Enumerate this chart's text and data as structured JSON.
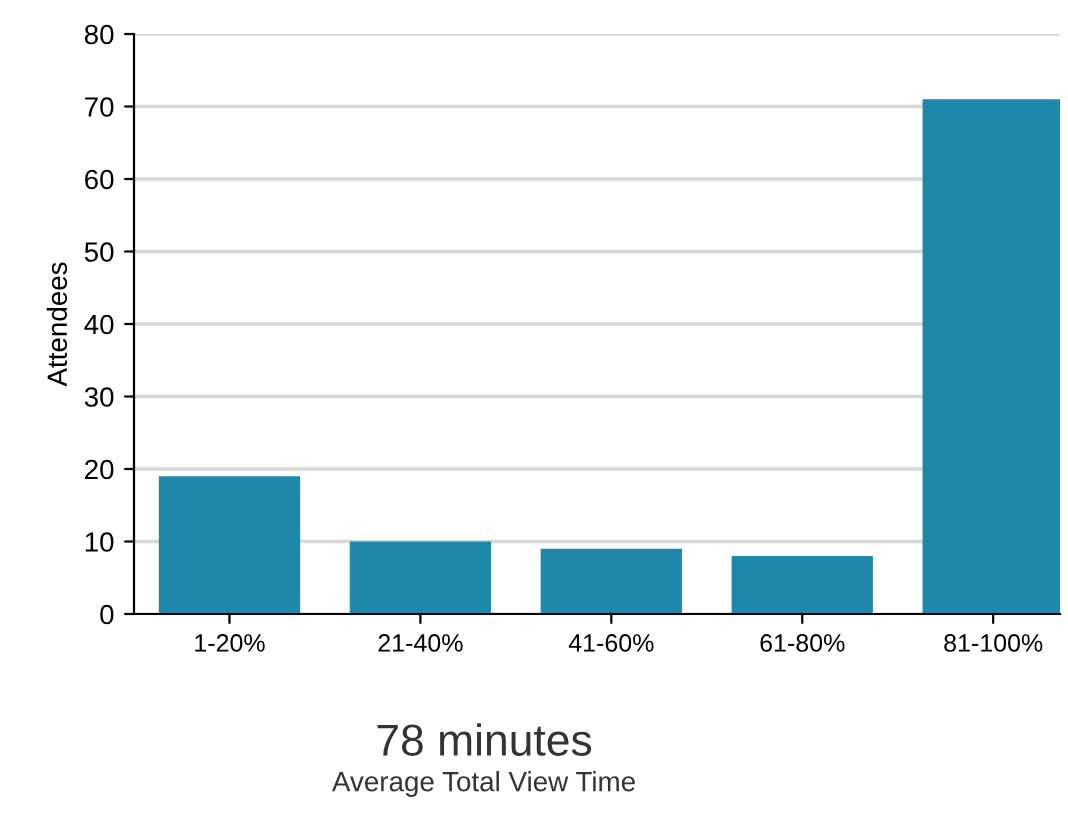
{
  "chart_data": {
    "type": "bar",
    "ylabel": "Attendees",
    "categories": [
      "1-20%",
      "21-40%",
      "41-60%",
      "61-80%",
      "81-100%"
    ],
    "values": [
      19,
      10,
      9,
      8,
      71
    ],
    "color": "#1f88aa",
    "ylim": [
      0,
      80
    ],
    "yticks": [
      0,
      10,
      20,
      30,
      40,
      50,
      60,
      70,
      80
    ],
    "grid": "y",
    "annotations": [
      "78 minutes",
      "Average Total View Time"
    ]
  }
}
